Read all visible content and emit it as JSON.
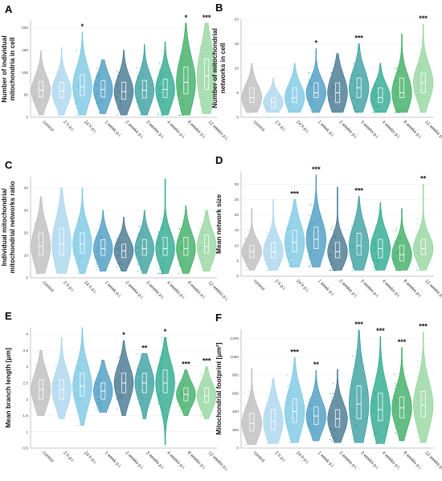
{
  "colors": [
    "#b9b9b9",
    "#a6d3ec",
    "#74c4e1",
    "#3f96bd",
    "#3a6f8a",
    "#2f9a9c",
    "#1fa488",
    "#31a85b",
    "#8fd49a"
  ],
  "chart_data": [
    {
      "type": "violin",
      "letter": "A",
      "ylabel": [
        "Number of individual",
        "mitochondria in cell"
      ],
      "ylim": [
        0,
        215
      ],
      "yticks": [
        0,
        50,
        100,
        150,
        200
      ],
      "categories": [
        "control",
        "2 h p.i.",
        "24 h p.i.",
        "1 week p.i.",
        "2 weeks p.i.",
        "3 weeks p.i.",
        "4 weeks p.i.",
        "8 weeks p.i.",
        "12 weeks p.i."
      ],
      "medians": [
        60,
        58,
        68,
        62,
        57,
        60,
        62,
        78,
        92
      ],
      "q1": [
        45,
        43,
        48,
        45,
        40,
        43,
        44,
        52,
        62
      ],
      "q3": [
        80,
        78,
        95,
        82,
        78,
        82,
        85,
        112,
        130
      ],
      "min": [
        5,
        5,
        5,
        8,
        5,
        5,
        5,
        5,
        8
      ],
      "max": [
        148,
        155,
        190,
        128,
        150,
        162,
        168,
        210,
        210
      ],
      "significance": [
        "",
        "",
        "*",
        "",
        "",
        "",
        "",
        "*",
        "***"
      ]
    },
    {
      "type": "violin",
      "letter": "B",
      "ylabel": [
        "Number of mitochondrial",
        "networks in cell"
      ],
      "ylim": [
        0,
        20
      ],
      "yticks": [
        0,
        5,
        10,
        15,
        20
      ],
      "categories": [
        "control",
        "2 h p.i.",
        "24 h p.i.",
        "1 week p.i.",
        "2 weeks p.i.",
        "3 weeks p.i.",
        "4 weeks p.i.",
        "8 weeks p.i.",
        "12 weeks p.i."
      ],
      "medians": [
        4,
        3,
        4,
        5,
        5,
        6,
        4,
        5,
        7
      ],
      "q1": [
        3,
        2,
        3,
        4,
        3,
        4,
        3,
        4,
        5
      ],
      "q3": [
        6,
        4,
        6,
        7,
        7,
        8,
        6,
        8,
        9
      ],
      "min": [
        1,
        1,
        1,
        1,
        1,
        1,
        1,
        1,
        1
      ],
      "max": [
        11,
        8,
        11,
        14,
        13,
        15,
        11,
        17,
        19
      ],
      "significance": [
        "",
        "",
        "",
        "*",
        "",
        "***",
        "",
        "",
        "***"
      ]
    },
    {
      "type": "violin",
      "letter": "C",
      "ylabel": [
        "Individual mitochondria/",
        "mitochondrial networks ratio"
      ],
      "ylim": [
        0,
        45
      ],
      "yticks": [
        0,
        10,
        20,
        30,
        40
      ],
      "categories": [
        "control",
        "2 h p.i.",
        "24 h p.i.",
        "1 week p.i.",
        "2 weeks p.i.",
        "3 weeks p.i.",
        "4 weeks p.i.",
        "8 weeks p.i.",
        "12 weeks p.i."
      ],
      "medians": [
        14,
        15,
        15,
        13,
        12,
        13,
        13,
        13,
        14
      ],
      "q1": [
        10,
        10,
        11,
        10,
        9,
        10,
        10,
        10,
        11
      ],
      "q3": [
        20,
        22,
        20,
        17,
        15,
        17,
        18,
        18,
        19
      ],
      "min": [
        2,
        2,
        2,
        3,
        3,
        2,
        2,
        2,
        3
      ],
      "max": [
        36,
        40,
        40,
        30,
        27,
        30,
        44,
        32,
        30
      ],
      "significance": [
        "",
        "",
        "",
        "",
        "",
        "",
        "",
        "",
        ""
      ]
    },
    {
      "type": "violin",
      "letter": "D",
      "ylabel": [
        "Mean network size"
      ],
      "ylim": [
        0,
        34
      ],
      "yticks": [
        0,
        5,
        10,
        15,
        20,
        25,
        30
      ],
      "categories": [
        "control",
        "2 h p.i.",
        "24 h p.i.",
        "1 week p.i.",
        "2 weeks p.i.",
        "3 weeks p.i.",
        "4 weeks p.i.",
        "8 weeks p.i.",
        "12 weeks p.i."
      ],
      "medians": [
        8,
        8,
        11,
        12,
        8,
        10,
        9,
        7,
        9
      ],
      "q1": [
        6,
        6,
        8,
        9,
        6,
        7,
        6,
        5,
        7
      ],
      "q3": [
        10,
        11,
        15,
        16,
        11,
        14,
        12,
        10,
        12
      ],
      "min": [
        2,
        2,
        3,
        3,
        2,
        2,
        2,
        2,
        2
      ],
      "max": [
        22,
        25,
        25,
        33,
        29,
        26,
        24,
        22,
        30
      ],
      "significance": [
        "",
        "",
        "***",
        "***",
        "",
        "***",
        "",
        "",
        "**"
      ]
    },
    {
      "type": "violin",
      "letter": "E",
      "ylabel": [
        "Mean branch length [μm]"
      ],
      "ylim": [
        0.5,
        4.2
      ],
      "yticks": [
        0.5,
        1,
        1.5,
        2,
        2.5,
        3,
        3.5,
        4
      ],
      "categories": [
        "control",
        "2 h p.i.",
        "24 h p.i.",
        "1 week p.i.",
        "2 weeks p.i.",
        "3 weeks p.i.",
        "4 weeks p.i.",
        "8 weeks p.i.",
        "12 weeks p.i."
      ],
      "medians": [
        2.3,
        2.3,
        2.4,
        2.25,
        2.5,
        2.5,
        2.5,
        2.15,
        2.1
      ],
      "q1": [
        2.0,
        2.0,
        2.1,
        2.0,
        2.2,
        2.2,
        2.2,
        1.95,
        1.9
      ],
      "q3": [
        2.6,
        2.6,
        2.8,
        2.5,
        2.8,
        2.8,
        2.9,
        2.35,
        2.35
      ],
      "min": [
        1.5,
        1.4,
        1.2,
        1.6,
        1.5,
        1.4,
        0.6,
        1.5,
        1.4
      ],
      "max": [
        3.5,
        3.9,
        4.2,
        3.2,
        3.8,
        3.4,
        3.9,
        2.9,
        3.0
      ],
      "significance": [
        "",
        "",
        "",
        "",
        "*",
        "**",
        "*",
        "***",
        "***"
      ]
    },
    {
      "type": "violin",
      "letter": "F",
      "ylabel": [
        "Mitochondrial footprint [μm²]"
      ],
      "ylim": [
        0,
        1300
      ],
      "yticks": [
        0,
        200,
        400,
        600,
        800,
        1000,
        1200
      ],
      "categories": [
        "control",
        "2 h p.i.",
        "24 h p.i.",
        "1 week p.i.",
        "2 weeks p.i.",
        "3 weeks p.i.",
        "4 weeks p.i.",
        "8 weeks p.i.",
        "12 weeks p.i."
      ],
      "medians": [
        270,
        290,
        400,
        350,
        320,
        480,
        420,
        440,
        470
      ],
      "q1": [
        190,
        200,
        280,
        260,
        230,
        320,
        300,
        330,
        340
      ],
      "q3": [
        380,
        420,
        540,
        450,
        420,
        680,
        600,
        560,
        620
      ],
      "min": [
        40,
        50,
        60,
        80,
        60,
        60,
        50,
        80,
        60
      ],
      "max": [
        870,
        760,
        990,
        850,
        860,
        1290,
        1220,
        1100,
        1270
      ],
      "significance": [
        "",
        "",
        "***",
        "**",
        "",
        "***",
        "***",
        "***",
        "***"
      ]
    }
  ]
}
